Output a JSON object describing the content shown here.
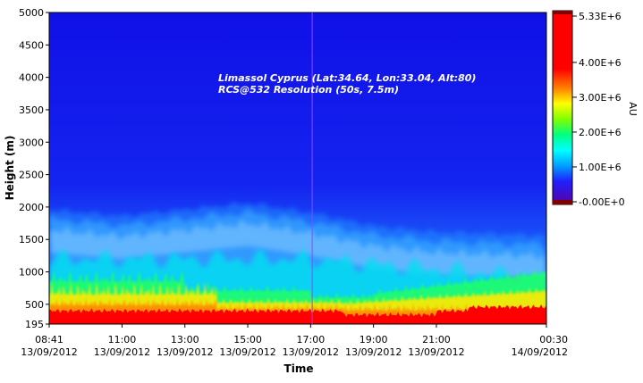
{
  "chart_data": {
    "type": "heatmap",
    "xlabel": "Time",
    "ylabel": "Height (m)",
    "ylim": [
      195,
      5000
    ],
    "xlim": [
      "08:41 13/09/2012",
      "00:30 14/09/2012"
    ],
    "y_ticks": [
      {
        "value": 195,
        "label": "195"
      },
      {
        "value": 500,
        "label": "500"
      },
      {
        "value": 1000,
        "label": "1000"
      },
      {
        "value": 1500,
        "label": "1500"
      },
      {
        "value": 2000,
        "label": "2000"
      },
      {
        "value": 2500,
        "label": "2500"
      },
      {
        "value": 3000,
        "label": "3000"
      },
      {
        "value": 3500,
        "label": "3500"
      },
      {
        "value": 4000,
        "label": "4000"
      },
      {
        "value": 4500,
        "label": "4500"
      },
      {
        "value": 5000,
        "label": "5000"
      }
    ],
    "x_ticks": [
      {
        "hours": 8.683,
        "time": "08:41",
        "date": "13/09/2012"
      },
      {
        "hours": 11,
        "time": "11:00",
        "date": "13/09/2012"
      },
      {
        "hours": 13,
        "time": "13:00",
        "date": "13/09/2012"
      },
      {
        "hours": 15,
        "time": "15:00",
        "date": "13/09/2012"
      },
      {
        "hours": 17,
        "time": "17:00",
        "date": "13/09/2012"
      },
      {
        "hours": 19,
        "time": "19:00",
        "date": "13/09/2012"
      },
      {
        "hours": 21,
        "time": "21:00",
        "date": "13/09/2012"
      },
      {
        "hours": 24.5,
        "time": "00:30",
        "date": "14/09/2012"
      }
    ],
    "annotation": [
      "Limassol Cyprus (Lat:34.64, Lon:33.04, Alt:80)",
      "RCS@532 Resolution (50s, 7.5m)"
    ],
    "colorbar": {
      "label": "AU",
      "min": 0,
      "max": 5330000,
      "ticks": [
        {
          "value": 0,
          "label": "-0.00E+0"
        },
        {
          "value": 1000000,
          "label": "1.00E+6"
        },
        {
          "value": 2000000,
          "label": "2.00E+6"
        },
        {
          "value": 3000000,
          "label": "3.00E+6"
        },
        {
          "value": 4000000,
          "label": "4.00E+6"
        },
        {
          "value": 5330000,
          "label": "5.33E+6"
        }
      ],
      "colors": [
        "#5a00a0",
        "#2020ff",
        "#00a0ff",
        "#00ffff",
        "#00ff80",
        "#80ff00",
        "#ffff00",
        "#ff8000",
        "#ff0000"
      ]
    },
    "marker_time_hours": 17.05,
    "marker_color": "#a040ff",
    "features": {
      "near_surface_high_signal_top_m": 400,
      "mixed_layer_top_m_morning": 900,
      "aerosol_layer_top_m": [
        {
          "hours": 8.683,
          "value": 1900
        },
        {
          "hours": 11,
          "value": 1800
        },
        {
          "hours": 13,
          "value": 1900
        },
        {
          "hours": 15,
          "value": 2000
        },
        {
          "hours": 17,
          "value": 1850
        },
        {
          "hours": 19,
          "value": 1650
        },
        {
          "hours": 21,
          "value": 1550
        },
        {
          "hours": 24.5,
          "value": 1500
        }
      ],
      "background": "low signal (blue) above aerosol layer"
    }
  }
}
